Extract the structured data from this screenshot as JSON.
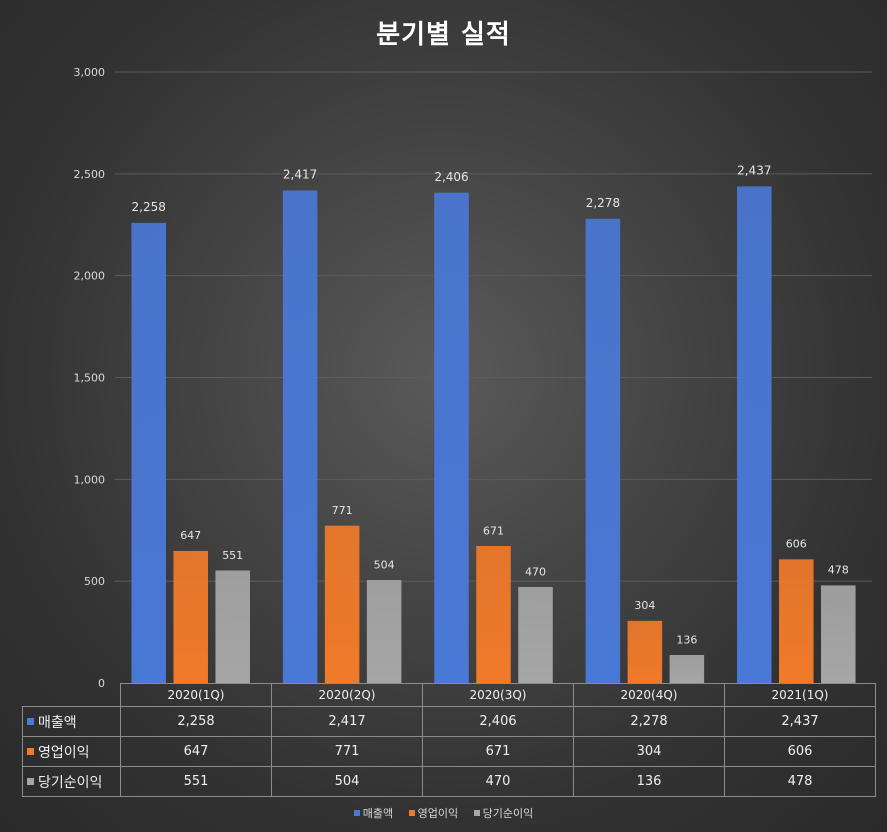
{
  "chart_data": {
    "type": "bar",
    "title": "분기별 실적",
    "categories": [
      "2020(1Q)",
      "2020(2Q)",
      "2020(3Q)",
      "2020(4Q)",
      "2021(1Q)"
    ],
    "series": [
      {
        "name": "매출액",
        "values": [
          2258,
          2417,
          2406,
          2278,
          2437
        ],
        "labels": [
          "2,258",
          "2,417",
          "2,406",
          "2,278",
          "2,437"
        ],
        "color": "#4a78d6"
      },
      {
        "name": "영업이익",
        "values": [
          647,
          771,
          671,
          304,
          606
        ],
        "labels": [
          "647",
          "771",
          "671",
          "304",
          "606"
        ],
        "color": "#f07a2a"
      },
      {
        "name": "당기순이익",
        "values": [
          551,
          504,
          470,
          136,
          478
        ],
        "labels": [
          "551",
          "504",
          "470",
          "136",
          "478"
        ],
        "color": "#a6a6a6"
      }
    ],
    "ylim": [
      0,
      3000
    ],
    "yticks": [
      0,
      500,
      1000,
      1500,
      2000,
      2500,
      3000
    ],
    "ytick_labels": [
      "0",
      "500",
      "1,000",
      "1,500",
      "2,000",
      "2,500",
      "3,000"
    ],
    "grid": true,
    "legend_position": "bottom",
    "data_table": true
  }
}
